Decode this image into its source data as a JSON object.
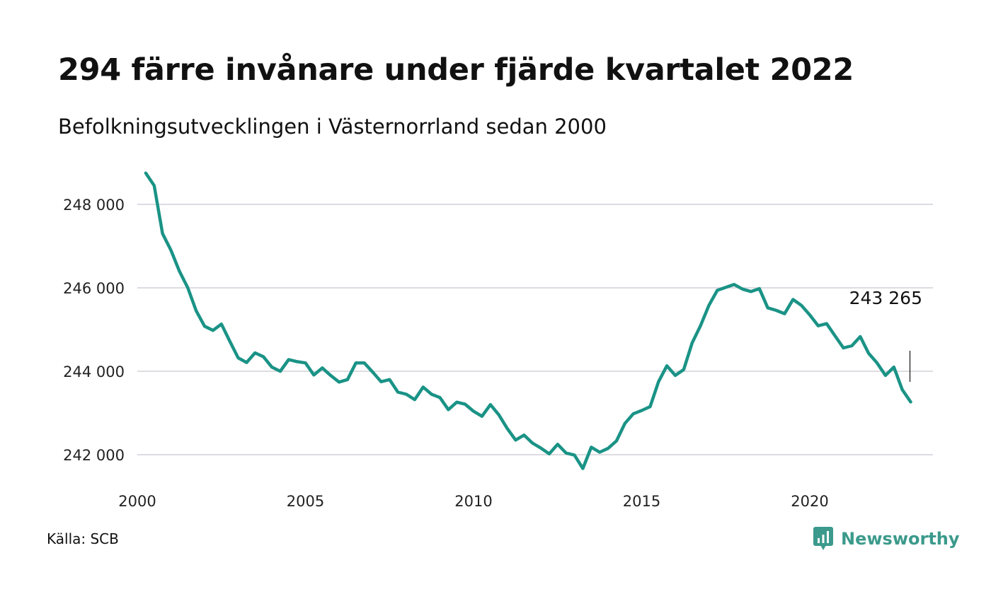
{
  "header": {
    "title": "294 färre invånare under fjärde kvartalet 2022",
    "subtitle": "Befolkningsutvecklingen i Västernorrland sedan 2000"
  },
  "footer": {
    "source": "Källa: SCB",
    "brand": "Newsworthy"
  },
  "colors": {
    "line": "#1a9386",
    "grid": "#dcdce2",
    "brand": "#3b9a8c"
  },
  "chart_data": {
    "type": "line",
    "title": "294 färre invånare under fjärde kvartalet 2022",
    "subtitle": "Befolkningsutvecklingen i Västernorrland sedan 2000",
    "xlabel": "",
    "ylabel": "",
    "xlim": [
      2000,
      2023.5
    ],
    "ylim": [
      241500,
      248900
    ],
    "x_ticks": [
      2000,
      2005,
      2010,
      2015,
      2020
    ],
    "x_tick_labels": [
      "2000",
      "2005",
      "2010",
      "2015",
      "2020"
    ],
    "y_ticks": [
      242000,
      244000,
      246000,
      248000
    ],
    "y_tick_labels": [
      "242 000",
      "244 000",
      "246 000",
      "248 000"
    ],
    "grid": "horizontal",
    "annotation": {
      "x": 2023,
      "y": 243265,
      "label": "243 265"
    },
    "series": [
      {
        "name": "",
        "x": [
          2000.25,
          2000.5,
          2000.75,
          2001,
          2001.25,
          2001.5,
          2001.75,
          2002,
          2002.25,
          2002.5,
          2002.75,
          2003,
          2003.25,
          2003.5,
          2003.75,
          2004,
          2004.25,
          2004.5,
          2004.75,
          2005,
          2005.25,
          2005.5,
          2005.75,
          2006,
          2006.25,
          2006.5,
          2006.75,
          2007,
          2007.25,
          2007.5,
          2007.75,
          2008,
          2008.25,
          2008.5,
          2008.75,
          2009,
          2009.25,
          2009.5,
          2009.75,
          2010,
          2010.25,
          2010.5,
          2010.75,
          2011,
          2011.25,
          2011.5,
          2011.75,
          2012,
          2012.25,
          2012.5,
          2012.75,
          2013,
          2013.25,
          2013.5,
          2013.75,
          2014,
          2014.25,
          2014.5,
          2014.75,
          2015,
          2015.25,
          2015.5,
          2015.75,
          2016,
          2016.25,
          2016.5,
          2016.75,
          2017,
          2017.25,
          2017.5,
          2017.75,
          2018,
          2018.25,
          2018.5,
          2018.75,
          2019,
          2019.25,
          2019.5,
          2019.75,
          2020,
          2020.25,
          2020.5,
          2020.75,
          2021,
          2021.25,
          2021.5,
          2021.75,
          2022,
          2022.25,
          2022.5,
          2022.75,
          2023
        ],
        "values": [
          248750,
          248450,
          247300,
          246900,
          246400,
          246000,
          245450,
          245080,
          244980,
          245130,
          244720,
          244320,
          244210,
          244440,
          244350,
          244100,
          244000,
          244280,
          244230,
          244200,
          243910,
          244080,
          243900,
          243740,
          243800,
          244200,
          244200,
          243980,
          243750,
          243800,
          243500,
          243450,
          243320,
          243620,
          243450,
          243370,
          243080,
          243260,
          243210,
          243040,
          242920,
          243200,
          242960,
          242630,
          242350,
          242470,
          242280,
          242160,
          242020,
          242250,
          242040,
          241990,
          241670,
          242180,
          242060,
          242150,
          242330,
          242750,
          242980,
          243060,
          243150,
          243750,
          244130,
          243900,
          244040,
          244680,
          245090,
          245580,
          245940,
          246010,
          246080,
          245970,
          245910,
          245980,
          245520,
          245460,
          245380,
          245720,
          245580,
          245350,
          245090,
          245140,
          244850,
          244560,
          244610,
          244830,
          244430,
          244200,
          243900,
          244100,
          243560,
          243265
        ]
      }
    ]
  }
}
